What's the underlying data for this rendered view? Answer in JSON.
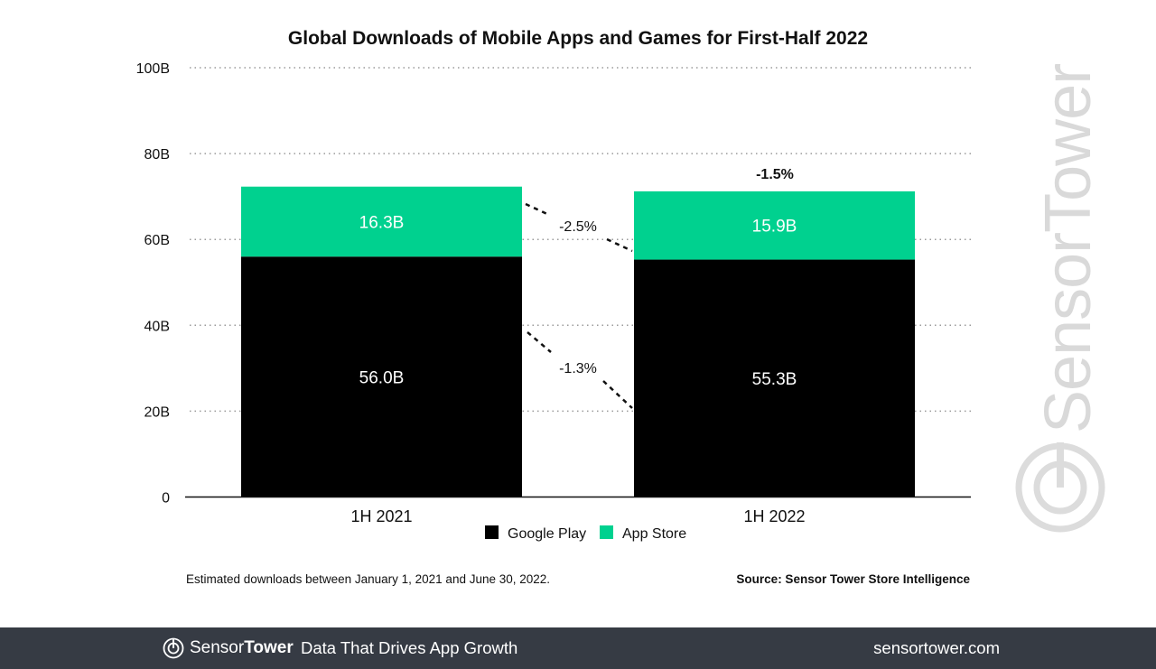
{
  "chart_data": {
    "type": "bar",
    "stacked": true,
    "title": "Global Downloads of Mobile Apps and Games for First-Half 2022",
    "categories": [
      "1H 2021",
      "1H 2022"
    ],
    "series": [
      {
        "name": "Google Play",
        "values": [
          56.0,
          55.3
        ],
        "labels": [
          "56.0B",
          "55.3B"
        ],
        "color": "#000000"
      },
      {
        "name": "App Store",
        "values": [
          16.3,
          15.9
        ],
        "labels": [
          "16.3B",
          "15.9B"
        ],
        "color": "#00d18f"
      }
    ],
    "ylim": [
      0,
      100
    ],
    "yticks": [
      0,
      20,
      40,
      60,
      80,
      100
    ],
    "ytick_labels": [
      "0",
      "20B",
      "40B",
      "60B",
      "80B",
      "100B"
    ],
    "grid": true,
    "legend": "bottom",
    "annotations": {
      "total_change": "-1.5%",
      "app_store_change": "-2.5%",
      "google_play_change": "-1.3%"
    }
  },
  "footnote": "Estimated downloads between January 1, 2021 and June 30, 2022.",
  "source": "Source: Sensor Tower Store Intelligence",
  "watermark": "SensorTower",
  "footer": {
    "brand_light": "Sensor",
    "brand_bold": "Tower",
    "tagline": "Data That Drives App Growth",
    "url": "sensortower.com",
    "background": "#363b44"
  }
}
